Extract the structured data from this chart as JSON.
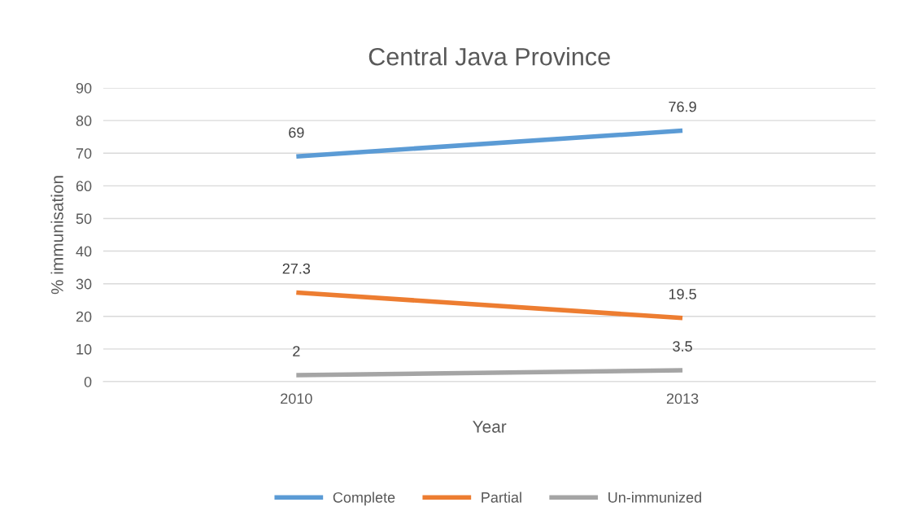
{
  "chart_data": {
    "type": "line",
    "title": "Central Java Province",
    "xlabel": "Year",
    "ylabel": "% immunisation",
    "categories": [
      "2010",
      "2013"
    ],
    "series": [
      {
        "name": "Complete",
        "color": "#5b9bd5",
        "values": [
          69,
          76.9
        ]
      },
      {
        "name": "Partial",
        "color": "#ed7d31",
        "values": [
          27.3,
          19.5
        ]
      },
      {
        "name": "Un-immunized",
        "color": "#a5a5a5",
        "values": [
          2,
          3.5
        ]
      }
    ],
    "ylim": [
      0,
      90
    ],
    "yticks": [
      0,
      10,
      20,
      30,
      40,
      50,
      60,
      70,
      80,
      90
    ],
    "grid": "y",
    "legend": "bottom",
    "data_labels": true,
    "marker": "none",
    "line_style": "solid"
  }
}
